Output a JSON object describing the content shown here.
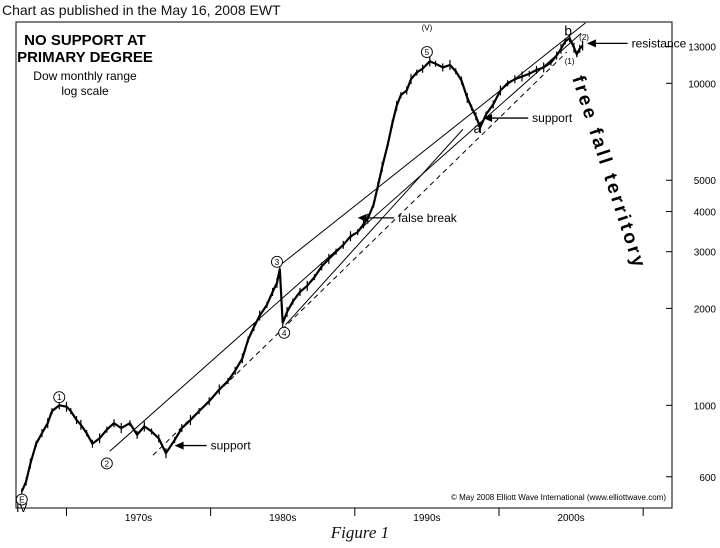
{
  "header": {
    "caption": "Chart as published in the May 16, 2008 EWT"
  },
  "footer": {
    "figure_label": "Figure 1"
  },
  "chart_data": {
    "type": "line",
    "title": "NO SUPPORT AT\nPRIMARY DEGREE",
    "subtitle": "Dow monthly range\nlog scale",
    "scale": "log",
    "grid": false,
    "xlim": [
      1966.5,
      2012.0
    ],
    "ylim": [
      480,
      15500
    ],
    "y_ticks": [
      600,
      1000,
      2000,
      3000,
      4000,
      5000,
      10000,
      13000
    ],
    "x_ticks": [
      {
        "label": "1970s",
        "value": 1975
      },
      {
        "label": "1980s",
        "value": 1985
      },
      {
        "label": "1990s",
        "value": 1995
      },
      {
        "label": "2000s",
        "value": 2005
      }
    ],
    "x_dividers": [
      1970,
      1980,
      1990,
      2000,
      2010
    ],
    "credit": "© May 2008 Elliott Wave International (www.elliottwave.com)",
    "series": [
      {
        "values": [
          [
            1966.9,
            540
          ],
          [
            1967.2,
            580
          ],
          [
            1967.5,
            660
          ],
          [
            1967.9,
            760
          ],
          [
            1968.3,
            820
          ],
          [
            1968.7,
            880
          ],
          [
            1969.0,
            960
          ],
          [
            1969.5,
            1000
          ],
          [
            1970.0,
            990
          ],
          [
            1970.3,
            960
          ],
          [
            1970.7,
            900
          ],
          [
            1971.0,
            870
          ],
          [
            1971.4,
            820
          ],
          [
            1971.8,
            760
          ],
          [
            1972.3,
            790
          ],
          [
            1972.8,
            840
          ],
          [
            1973.3,
            880
          ],
          [
            1973.8,
            850
          ],
          [
            1974.4,
            880
          ],
          [
            1974.9,
            810
          ],
          [
            1975.4,
            860
          ],
          [
            1975.9,
            830
          ],
          [
            1976.4,
            790
          ],
          [
            1976.9,
            710
          ],
          [
            1977.5,
            780
          ],
          [
            1978.0,
            850
          ],
          [
            1978.6,
            900
          ],
          [
            1979.2,
            960
          ],
          [
            1979.9,
            1030
          ],
          [
            1980.6,
            1120
          ],
          [
            1981.2,
            1190
          ],
          [
            1981.7,
            1280
          ],
          [
            1982.2,
            1400
          ],
          [
            1982.6,
            1600
          ],
          [
            1983.0,
            1750
          ],
          [
            1983.4,
            1900
          ],
          [
            1983.9,
            2050
          ],
          [
            1984.3,
            2250
          ],
          [
            1984.6,
            2400
          ],
          [
            1984.8,
            2650
          ],
          [
            1985.0,
            1800
          ],
          [
            1985.3,
            1950
          ],
          [
            1985.7,
            2100
          ],
          [
            1986.2,
            2250
          ],
          [
            1986.7,
            2350
          ],
          [
            1987.2,
            2500
          ],
          [
            1987.7,
            2700
          ],
          [
            1988.2,
            2850
          ],
          [
            1988.7,
            3000
          ],
          [
            1989.2,
            3150
          ],
          [
            1989.7,
            3350
          ],
          [
            1990.2,
            3450
          ],
          [
            1990.6,
            3650
          ],
          [
            1990.9,
            3800
          ],
          [
            1991.3,
            4200
          ],
          [
            1991.6,
            4800
          ],
          [
            1991.9,
            5500
          ],
          [
            1992.3,
            6500
          ],
          [
            1992.6,
            7500
          ],
          [
            1992.9,
            8500
          ],
          [
            1993.2,
            9200
          ],
          [
            1993.6,
            9500
          ],
          [
            1993.9,
            10300
          ],
          [
            1994.3,
            10800
          ],
          [
            1994.7,
            11100
          ],
          [
            1995.2,
            11700
          ],
          [
            1995.6,
            11500
          ],
          [
            1996.1,
            11200
          ],
          [
            1996.6,
            11400
          ],
          [
            1997.0,
            10900
          ],
          [
            1997.4,
            10200
          ],
          [
            1997.8,
            9000
          ],
          [
            1998.1,
            8400
          ],
          [
            1998.4,
            7900
          ],
          [
            1998.7,
            7300
          ],
          [
            1999.1,
            8000
          ],
          [
            1999.6,
            8600
          ],
          [
            2000.1,
            9500
          ],
          [
            2000.6,
            10000
          ],
          [
            2001.1,
            10300
          ],
          [
            2001.6,
            10500
          ],
          [
            2002.1,
            10700
          ],
          [
            2002.6,
            11000
          ],
          [
            2003.1,
            11200
          ],
          [
            2003.6,
            11600
          ],
          [
            2004.0,
            12200
          ],
          [
            2004.3,
            12800
          ],
          [
            2004.6,
            13500
          ],
          [
            2004.9,
            13800
          ],
          [
            2005.2,
            12900
          ],
          [
            2005.4,
            12300
          ],
          [
            2005.6,
            12800
          ],
          [
            2005.8,
            13100
          ]
        ]
      }
    ],
    "channel_lines": [
      {
        "points": [
          [
            1984.8,
            2720
          ],
          [
            2006.0,
            15400
          ]
        ]
      },
      {
        "points": [
          [
            1973.0,
            720
          ],
          [
            2005.7,
            14300
          ]
        ]
      },
      {
        "points": [
          [
            1985.2,
            1780
          ],
          [
            1997.5,
            7200
          ]
        ],
        "note": "lower channel line"
      },
      {
        "points": [
          [
            1976.0,
            700
          ],
          [
            2004.7,
            12500
          ]
        ],
        "dashed": true
      }
    ],
    "wave_labels": [
      {
        "text": "E",
        "circled": true,
        "x": 1966.9,
        "y": 510
      },
      {
        "text": "IV",
        "x": 1966.9,
        "y": 480
      },
      {
        "text": "1",
        "circled": true,
        "x": 1969.5,
        "y": 1060
      },
      {
        "text": "2",
        "circled": true,
        "x": 1972.8,
        "y": 660
      },
      {
        "text": "3",
        "circled": true,
        "x": 1984.6,
        "y": 2790
      },
      {
        "text": "4",
        "circled": true,
        "x": 1985.1,
        "y": 1680
      },
      {
        "text": "5",
        "circled": true,
        "x": 1995.0,
        "y": 12500
      },
      {
        "text": "(V)",
        "x": 1995.0,
        "y": 15000
      },
      {
        "text": "a",
        "x": 1998.5,
        "y": 7200
      },
      {
        "text": "b",
        "x": 2004.8,
        "y": 14500
      },
      {
        "text": "(1)",
        "x": 2004.9,
        "y": 11800
      },
      {
        "text": "(2)",
        "x": 2005.9,
        "y": 14000
      }
    ],
    "annotations": [
      {
        "text": "support",
        "x": 1980.0,
        "y": 750,
        "arrow_to": [
          1977.5,
          750
        ]
      },
      {
        "text": "false break",
        "x": 1993.0,
        "y": 3820,
        "arrow_to": [
          1990.2,
          3820
        ]
      },
      {
        "text": "support",
        "x": 2002.3,
        "y": 7800,
        "arrow_to": [
          1998.9,
          7800
        ]
      },
      {
        "text": "resistance",
        "x": 2009.2,
        "y": 13300,
        "arrow_to": [
          2006.1,
          13300
        ]
      }
    ],
    "side_text": "free fall territory"
  }
}
